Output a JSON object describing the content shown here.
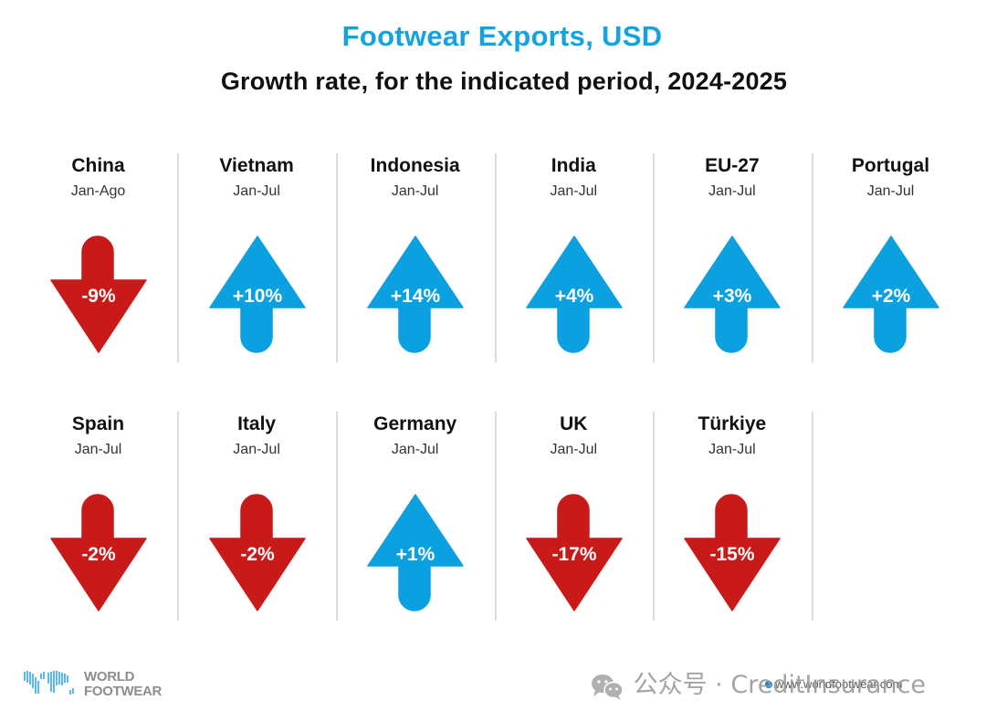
{
  "chart_data": {
    "type": "table",
    "title": "Footwear Exports, USD",
    "subtitle": "Growth rate, for the indicated period, 2024-2025",
    "unit": "%",
    "colors": {
      "positive": "#0ba0e0",
      "negative": "#c91a1a"
    },
    "items": [
      {
        "country": "China",
        "period": "Jan-Ago",
        "value": -9,
        "label": "-9%"
      },
      {
        "country": "Vietnam",
        "period": "Jan-Jul",
        "value": 10,
        "label": "+10%"
      },
      {
        "country": "Indonesia",
        "period": "Jan-Jul",
        "value": 14,
        "label": "+14%"
      },
      {
        "country": "India",
        "period": "Jan-Jul",
        "value": 4,
        "label": "+4%"
      },
      {
        "country": "EU-27",
        "period": "Jan-Jul",
        "value": 3,
        "label": "+3%"
      },
      {
        "country": "Portugal",
        "period": "Jan-Jul",
        "value": 2,
        "label": "+2%"
      },
      {
        "country": "Spain",
        "period": "Jan-Jul",
        "value": -2,
        "label": "-2%"
      },
      {
        "country": "Italy",
        "period": "Jan-Jul",
        "value": -2,
        "label": "-2%"
      },
      {
        "country": "Germany",
        "period": "Jan-Jul",
        "value": 1,
        "label": "+1%"
      },
      {
        "country": "UK",
        "period": "Jan-Jul",
        "value": -17,
        "label": "-17%"
      },
      {
        "country": "Türkiye",
        "period": "Jan-Jul",
        "value": -15,
        "label": "-15%"
      }
    ]
  },
  "footer": {
    "logo_line1": "WORLD",
    "logo_line2": "FOOTWEAR",
    "url": "www.worldfootwear.com",
    "watermark": "公众号 · CreditInsurance",
    "logo_icon": "world-map-icon",
    "watermark_icon": "wechat-icon"
  }
}
